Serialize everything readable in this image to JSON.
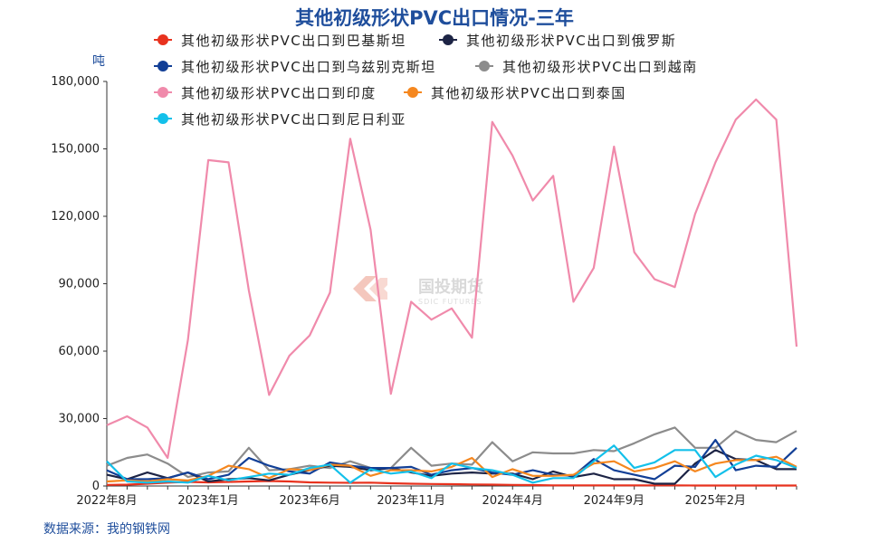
{
  "title": "其他初级形状PVC出口情况-三年",
  "unit_label": "吨",
  "source": "数据来源：我的钢铁网",
  "watermark": {
    "name": "国投期货",
    "sub": "SDIC FUTURES"
  },
  "chart_data": {
    "type": "line",
    "title": "其他初级形状PVC出口情况-三年",
    "ylabel": "吨",
    "ylim": [
      0,
      180000
    ],
    "yticks": [
      0,
      30000,
      60000,
      90000,
      120000,
      150000,
      180000
    ],
    "ytick_labels": [
      "0",
      "30,000",
      "60,000",
      "90,000",
      "120,000",
      "150,000",
      "180,000"
    ],
    "x": [
      "2022-08",
      "2022-09",
      "2022-10",
      "2022-11",
      "2022-12",
      "2023-01",
      "2023-02",
      "2023-03",
      "2023-04",
      "2023-05",
      "2023-06",
      "2023-07",
      "2023-08",
      "2023-09",
      "2023-10",
      "2023-11",
      "2023-12",
      "2024-01",
      "2024-02",
      "2024-03",
      "2024-04",
      "2024-05",
      "2024-06",
      "2024-07",
      "2024-08",
      "2024-09",
      "2024-10",
      "2024-11",
      "2024-12",
      "2025-01",
      "2025-02",
      "2025-03",
      "2025-04",
      "2025-05",
      "2025-06"
    ],
    "xtick_labels": [
      {
        "index": 0,
        "label": "2022年8月"
      },
      {
        "index": 5,
        "label": "2023年1月"
      },
      {
        "index": 10,
        "label": "2023年6月"
      },
      {
        "index": 15,
        "label": "2023年11月"
      },
      {
        "index": 20,
        "label": "2024年4月"
      },
      {
        "index": 25,
        "label": "2024年9月"
      },
      {
        "index": 30,
        "label": "2025年2月"
      }
    ],
    "legend_position": "top-left",
    "grid": false,
    "series": [
      {
        "name": "其他初级形状PVC出口到巴基斯坦",
        "color": "#e8321e",
        "values": [
          500,
          600,
          1000,
          1500,
          1800,
          1600,
          1800,
          2000,
          2200,
          2000,
          1600,
          1500,
          1400,
          1500,
          1200,
          1000,
          900,
          800,
          700,
          600,
          500,
          400,
          300,
          300,
          300,
          300,
          300,
          300,
          300,
          200,
          200,
          200,
          200,
          200,
          200
        ]
      },
      {
        "name": "其他初级形状PVC出口到俄罗斯",
        "color": "#1d2445",
        "values": [
          5000,
          3000,
          6000,
          3500,
          6000,
          2000,
          3000,
          3500,
          2500,
          5000,
          7000,
          9000,
          8500,
          7000,
          8000,
          6000,
          4500,
          5500,
          6000,
          5500,
          5500,
          3000,
          6500,
          4000,
          5500,
          3000,
          3000,
          1000,
          1000,
          10000,
          16000,
          12000,
          11500,
          7500,
          7500
        ]
      },
      {
        "name": "其他初级形状PVC出口到乌兹别克斯坦",
        "color": "#123f96",
        "values": [
          7000,
          3000,
          3000,
          3500,
          6000,
          3000,
          5000,
          12500,
          9000,
          6500,
          5500,
          10500,
          9000,
          8000,
          8000,
          8500,
          5000,
          7000,
          8000,
          6000,
          5000,
          7000,
          5000,
          4500,
          12000,
          7000,
          5000,
          3000,
          9000,
          8500,
          20500,
          7000,
          9000,
          8500,
          17000
        ]
      },
      {
        "name": "其他初级形状PVC出口到越南",
        "color": "#8c8c8c",
        "values": [
          9000,
          12500,
          14000,
          10000,
          4000,
          6000,
          6500,
          17000,
          7000,
          7500,
          9000,
          8000,
          11000,
          8000,
          8000,
          17000,
          9000,
          10000,
          9500,
          19500,
          11000,
          15000,
          14500,
          14500,
          16000,
          15500,
          19000,
          23000,
          26000,
          17000,
          17000,
          24500,
          20500,
          19500,
          24500
        ]
      },
      {
        "name": "其他初级形状PVC出口到印度",
        "color": "#f08aab",
        "values": [
          27000,
          31000,
          26000,
          12500,
          65000,
          145000,
          144000,
          87000,
          40500,
          58000,
          67000,
          86000,
          154500,
          114000,
          41000,
          82000,
          74000,
          79000,
          66000,
          162000,
          147000,
          127000,
          138000,
          82000,
          97000,
          151000,
          104000,
          92000,
          88500,
          121000,
          144000,
          163000,
          172000,
          163000,
          62000
        ]
      },
      {
        "name": "其他初级形状PVC出口到泰国",
        "color": "#f5871f",
        "values": [
          2000,
          2500,
          2000,
          3000,
          2500,
          4500,
          9000,
          7500,
          3500,
          7500,
          7000,
          9500,
          9000,
          4500,
          7000,
          7000,
          6500,
          8500,
          12500,
          4000,
          7500,
          4500,
          4500,
          5000,
          10000,
          11000,
          6500,
          8000,
          11000,
          6500,
          10000,
          11500,
          11500,
          13000,
          8500
        ]
      },
      {
        "name": "其他初级形状PVC出口到尼日利亚",
        "color": "#13c0ea",
        "values": [
          11000,
          2000,
          1500,
          2000,
          1500,
          4500,
          2500,
          4000,
          5500,
          5000,
          8000,
          9500,
          1500,
          7500,
          5500,
          6500,
          3500,
          10000,
          8000,
          7000,
          5000,
          1500,
          3500,
          3500,
          11000,
          18000,
          8000,
          10500,
          16000,
          16000,
          4000,
          9500,
          13500,
          11500,
          8000
        ]
      }
    ]
  }
}
